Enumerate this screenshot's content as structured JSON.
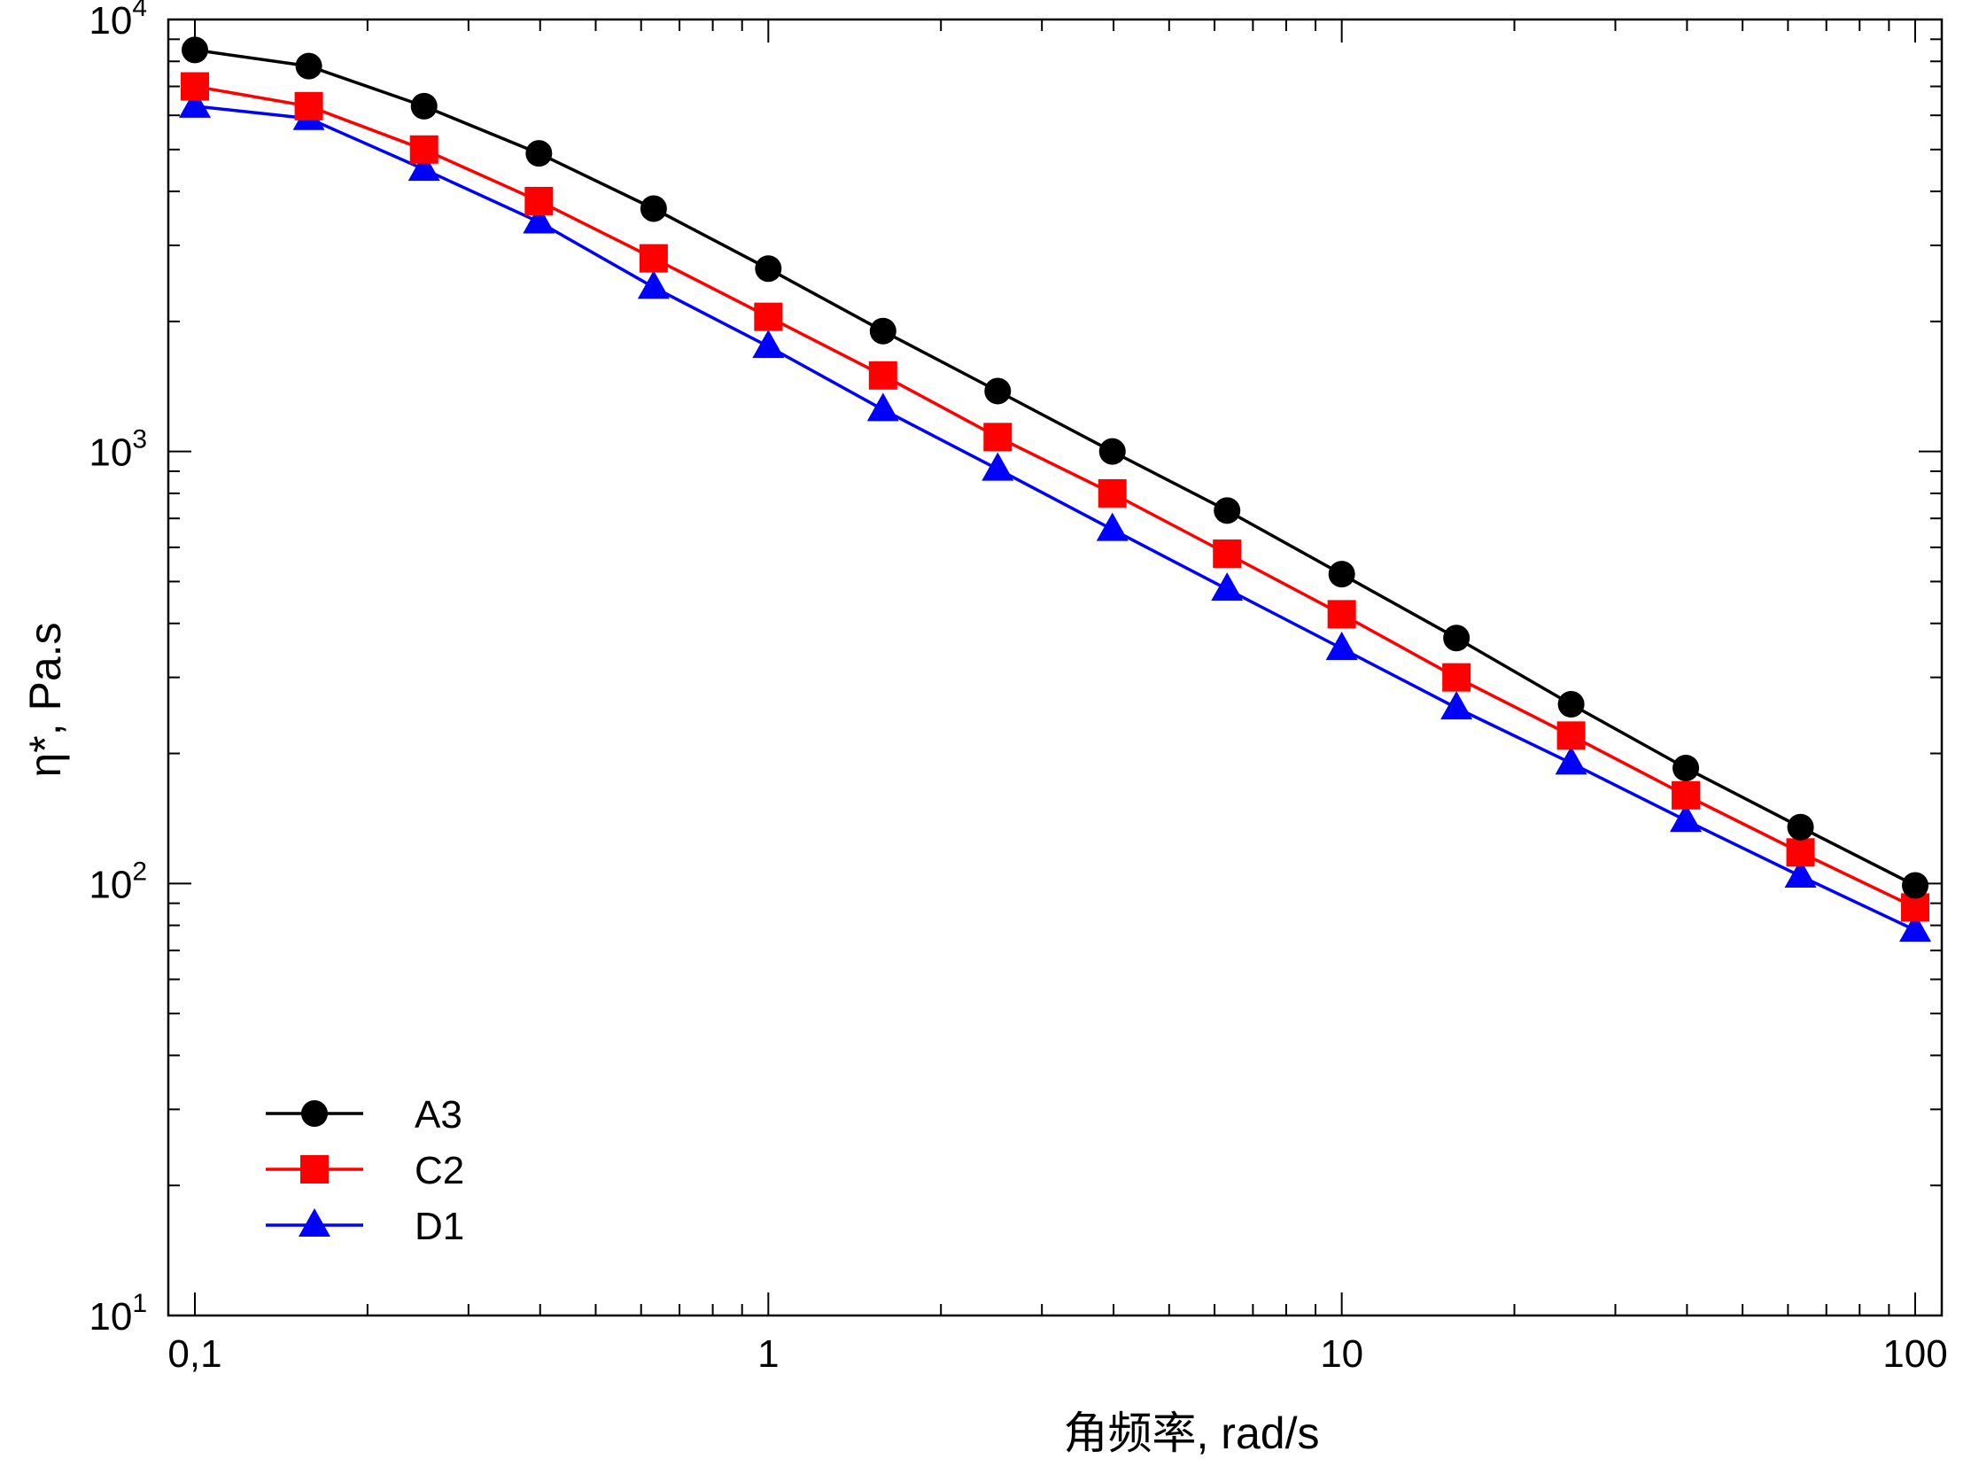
{
  "chart_data": {
    "type": "line",
    "xlabel": "角频率, rad/s",
    "ylabel": "η*, Pa.s",
    "xscale": "log",
    "yscale": "log",
    "xlim": [
      0.1,
      100
    ],
    "ylim": [
      10,
      10000
    ],
    "x_tick_labels": [
      {
        "value": 0.1,
        "label": "0,1"
      },
      {
        "value": 1,
        "label": "1"
      },
      {
        "value": 10,
        "label": "10"
      },
      {
        "value": 100,
        "label": "100"
      }
    ],
    "y_tick_labels": [
      {
        "value": 10,
        "base": "10",
        "exp": "1"
      },
      {
        "value": 100,
        "base": "10",
        "exp": "2"
      },
      {
        "value": 1000,
        "base": "10",
        "exp": "3"
      },
      {
        "value": 10000,
        "base": "10",
        "exp": "4"
      }
    ],
    "grid": false,
    "legend_position": "bottom-left",
    "x": [
      0.1,
      0.158,
      0.251,
      0.398,
      0.631,
      1,
      1.585,
      2.512,
      3.981,
      6.31,
      10,
      15.85,
      25.12,
      39.81,
      63.1,
      100
    ],
    "series": [
      {
        "name": "A3",
        "color": "#000000",
        "marker": "circle",
        "values": [
          8500,
          7800,
          6300,
          4900,
          3650,
          2650,
          1900,
          1380,
          1000,
          730,
          520,
          370,
          260,
          185,
          135,
          99
        ]
      },
      {
        "name": "C2",
        "color": "#ff0000",
        "marker": "square",
        "values": [
          7000,
          6300,
          5000,
          3800,
          2800,
          2050,
          1500,
          1080,
          800,
          580,
          420,
          300,
          220,
          160,
          118,
          88
        ]
      },
      {
        "name": "D1",
        "color": "#0000ff",
        "marker": "triangle",
        "values": [
          6300,
          5900,
          4500,
          3400,
          2400,
          1750,
          1250,
          910,
          660,
          480,
          350,
          255,
          190,
          140,
          104,
          78
        ]
      }
    ]
  }
}
